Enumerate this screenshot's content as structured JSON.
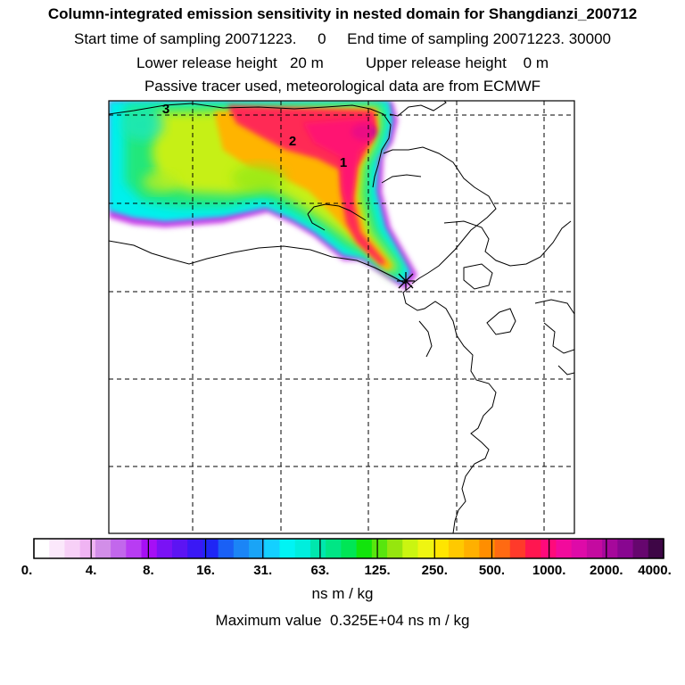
{
  "header": {
    "title": "Column-integrated emission sensitivity in nested domain for Shangdianzi_200712",
    "sampling_line": "Start time of sampling 20071223.     0     End time of sampling 20071223. 30000",
    "release_line": "Lower release height   20 m          Upper release height    0 m",
    "tracer_line": "Passive tracer used, meteorological data are from ECMWF"
  },
  "map": {
    "source_marker": "asterisk-icon",
    "annotations": [
      "3",
      "2",
      "1"
    ]
  },
  "colorbar": {
    "tick_labels": [
      "0.",
      "4.",
      "8.",
      "16.",
      "31.",
      "63.",
      "125.",
      "250.",
      "500.",
      "1000.",
      "2000.",
      "4000."
    ],
    "units": "ns m / kg",
    "colors": [
      "#ffffff",
      "#fbe8fb",
      "#f7d0f7",
      "#f0b4f3",
      "#d28ee8",
      "#c267ec",
      "#b83cf3",
      "#a60ff6",
      "#7a12f5",
      "#5c14f3",
      "#3a18f5",
      "#1f26f5",
      "#1a60f5",
      "#1b85f6",
      "#1aa4f6",
      "#14d0ff",
      "#00f4f4",
      "#00eedd",
      "#00e7ad",
      "#00e685",
      "#00e655",
      "#12e40c",
      "#58e60e",
      "#96e60e",
      "#caf511",
      "#eff511",
      "#ffe500",
      "#ffc900",
      "#ffb000",
      "#ff8e00",
      "#ff6a12",
      "#ff3a2a",
      "#ff1650",
      "#ff0a7b",
      "#f20a9c",
      "#de0aa8",
      "#c40aa0",
      "#a6089b",
      "#880690",
      "#66066e",
      "#3e0646"
    ]
  },
  "footer": {
    "max_value_line": "Maximum value  0.325E+04 ns m / kg"
  }
}
